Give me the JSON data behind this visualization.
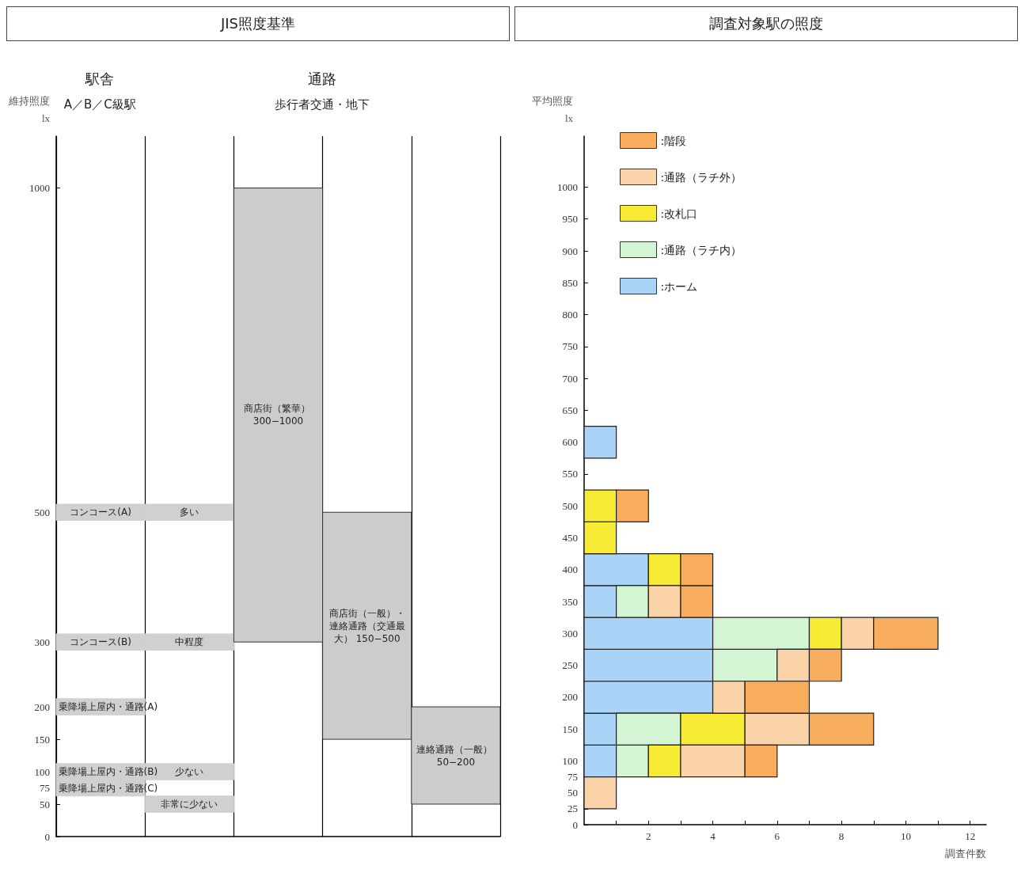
{
  "chart_data": [
    {
      "type": "bar",
      "title": "JIS照度基準",
      "ylabel": "維持照度\nlx",
      "annotations": [
        "駅舎",
        "A／B／C級駅",
        "通路",
        "歩行者交通・地下"
      ],
      "categories": [
        null,
        null,
        null,
        null,
        null
      ],
      "ylim": [
        0,
        1080
      ],
      "yticks": [
        0,
        50,
        75,
        100,
        150,
        200,
        300,
        500,
        1000
      ],
      "grid": "x",
      "tick_labels": "y",
      "series": [
        {
          "color": "#d0d0d0",
          "values": [
            25,
            25,
            null,
            null,
            null
          ],
          "base": [
            487.5,
            487.5,
            null,
            null,
            null
          ],
          "value_labels": [
            "コンコース(A)",
            "多い",
            null,
            null,
            null
          ]
        },
        {
          "color": "#d0d0d0",
          "values": [
            25,
            25,
            null,
            null,
            null
          ],
          "base": [
            287.5,
            287.5,
            null,
            null,
            null
          ],
          "value_labels": [
            "コンコース(B)",
            "中程度",
            null,
            null,
            null
          ]
        },
        {
          "color": "#d0d0d0",
          "values": [
            25,
            null,
            null,
            null,
            null
          ],
          "base": [
            187.5,
            null,
            null,
            null,
            null
          ],
          "value_labels": [
            "乗降場上屋内・通路(A)",
            null,
            null,
            null,
            null
          ]
        },
        {
          "color": "#d0d0d0",
          "values": [
            25,
            25,
            null,
            null,
            null
          ],
          "base": [
            87.5,
            87.5,
            null,
            null,
            null
          ],
          "value_labels": [
            "乗降場上屋内・通路(B)",
            "少ない",
            null,
            null,
            null
          ]
        },
        {
          "color": "#d0d0d0",
          "values": [
            25,
            null,
            null,
            null,
            null
          ],
          "base": [
            62.5,
            null,
            null,
            null,
            null
          ],
          "value_labels": [
            "乗降場上屋内・通路(C)",
            null,
            null,
            null,
            null
          ]
        },
        {
          "color": "#d0d0d0",
          "values": [
            null,
            25,
            null,
            null,
            null
          ],
          "base": [
            null,
            37.5,
            null,
            null,
            null
          ],
          "value_labels": [
            null,
            "非常に少ない",
            null,
            null,
            null
          ]
        },
        {
          "color": "#cccccc",
          "values": [
            null,
            null,
            700,
            350,
            150
          ],
          "base": [
            null,
            null,
            300,
            150,
            50
          ],
          "value_labels": [
            null,
            null,
            "商店街（繁華） 300−1000",
            "商店街（一般）・連絡通路（交通最大） 150−500",
            "連絡通路（一般） 50−200"
          ]
        }
      ]
    },
    {
      "type": "bar",
      "title": "調査対象駅の照度",
      "ylabel": "平均照度\nlx",
      "xlabel": "調査件数",
      "orientation": "horizontal",
      "stacked": true,
      "legend": "top left",
      "grid": false,
      "x": [
        50,
        100,
        150,
        200,
        250,
        300,
        350,
        400,
        450,
        500,
        600
      ],
      "ylim": [
        0,
        1080
      ],
      "yticks": [
        0,
        25,
        50,
        75,
        100,
        150,
        200,
        250,
        300,
        350,
        400,
        450,
        500,
        550,
        600,
        650,
        700,
        750,
        800,
        850,
        900,
        950,
        1000
      ],
      "xlim": [
        0,
        12.5
      ],
      "xticks": [
        {
          "value": 1,
          "label": null
        },
        2,
        {
          "value": 3,
          "label": null
        },
        4,
        {
          "value": 5,
          "label": null
        },
        6,
        {
          "value": 7,
          "label": null
        },
        8,
        {
          "value": 9,
          "label": null
        },
        10,
        {
          "value": 11,
          "label": null
        },
        12
      ],
      "series": [
        {
          "name": ":ホーム",
          "color": "#a9d3f7",
          "values": [
            0,
            1,
            1,
            4,
            4,
            4,
            1,
            2,
            0,
            0,
            1
          ]
        },
        {
          "name": ":通路（ラチ内）",
          "color": "#d3f5d3",
          "values": [
            0,
            1,
            2,
            0,
            2,
            3,
            1,
            0,
            0,
            0,
            0
          ]
        },
        {
          "name": ":改札口",
          "color": "#f7eb35",
          "values": [
            0,
            1,
            2,
            0,
            0,
            1,
            0,
            1,
            1,
            1,
            0
          ]
        },
        {
          "name": ":通路（ラチ外）",
          "color": "#fbd3a8",
          "values": [
            1,
            2,
            2,
            1,
            1,
            1,
            1,
            0,
            0,
            0,
            0
          ]
        },
        {
          "name": ":階段",
          "color": "#f7ad5c",
          "values": [
            0,
            1,
            2,
            2,
            1,
            2,
            1,
            1,
            0,
            1,
            0
          ]
        }
      ]
    }
  ]
}
